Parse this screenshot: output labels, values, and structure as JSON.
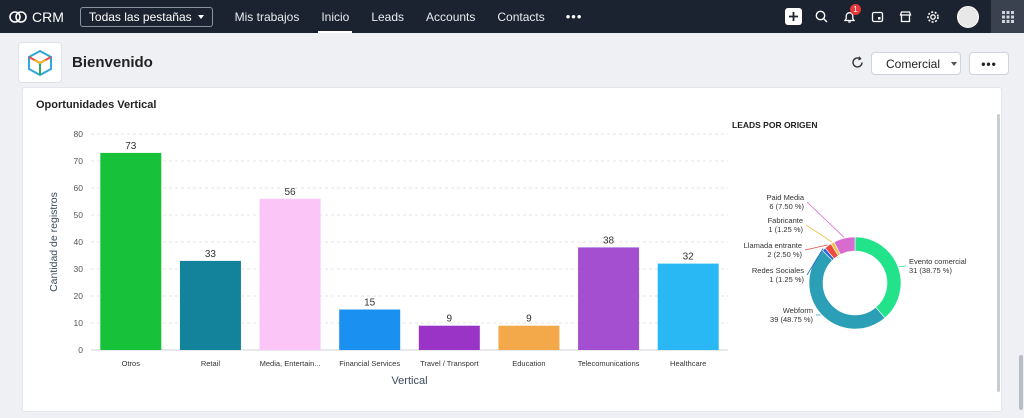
{
  "topbar": {
    "app_name": "CRM",
    "tabs_dropdown": "Todas las pestañas",
    "nav": [
      "Mis trabajos",
      "Inicio",
      "Leads",
      "Accounts",
      "Contacts"
    ],
    "active_nav": "Inicio",
    "more": "•••",
    "notification_count": "1"
  },
  "welcome": {
    "title": "Bienvenido",
    "view_dropdown": "Comercial",
    "more": "•••"
  },
  "card": {
    "title": "Oportunidades Vertical"
  },
  "chart_data": [
    {
      "type": "bar",
      "title": "",
      "xlabel": "Vertical",
      "ylabel": "Cantidad de registros",
      "ylim": [
        0,
        80
      ],
      "yticks": [
        0,
        10,
        20,
        30,
        40,
        50,
        60,
        70,
        80
      ],
      "grid": true,
      "categories": [
        "Otros",
        "Retail",
        "Media, Entertain...",
        "Financial Services",
        "Travel / Transport",
        "Education",
        "Telecomunications",
        "Healthcare"
      ],
      "values": [
        73,
        33,
        56,
        15,
        9,
        9,
        38,
        32
      ],
      "colors": [
        "#17c23a",
        "#13829b",
        "#fbc6f7",
        "#1a90f0",
        "#9a34c6",
        "#f3a84a",
        "#a34fd0",
        "#2ab8f5"
      ]
    },
    {
      "type": "pie",
      "variant": "donut",
      "title": "LEADS POR ORIGEN",
      "slices": [
        {
          "name": "Evento comercial",
          "value": 31,
          "label": "31 (38.75 %)",
          "color": "#22e38a"
        },
        {
          "name": "Webform",
          "value": 39,
          "label": "39 (48.75 %)",
          "color": "#2a9fb5"
        },
        {
          "name": "Redes Sociales",
          "value": 1,
          "label": "1 (1.25 %)",
          "color": "#2c67d6"
        },
        {
          "name": "Llamada entrante",
          "value": 2,
          "label": "2 (2.50 %)",
          "color": "#ef4a3e"
        },
        {
          "name": "Fabricante",
          "value": 1,
          "label": "1 (1.25 %)",
          "color": "#f2c14e"
        },
        {
          "name": "Paid Media",
          "value": 6,
          "label": "6 (7.50 %)",
          "color": "#d86bd0"
        }
      ]
    }
  ]
}
